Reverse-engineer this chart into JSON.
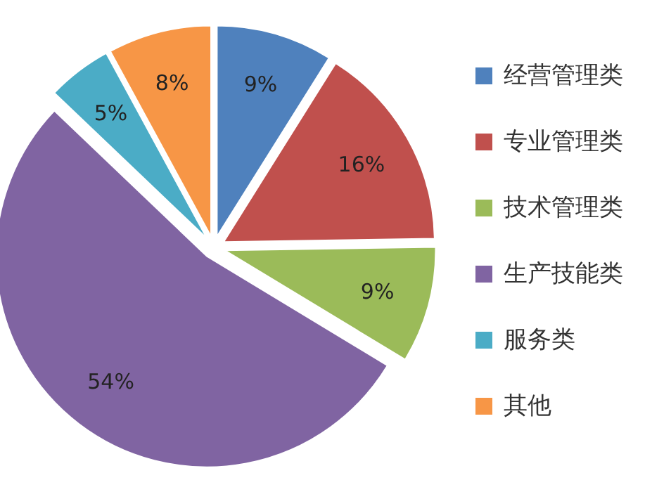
{
  "chart_data": {
    "type": "pie",
    "categories": [
      "经营管理类",
      "专业管理类",
      "技术管理类",
      "生产技能类",
      "服务类",
      "其他"
    ],
    "values": [
      9,
      16,
      9,
      54,
      5,
      8
    ],
    "colors": [
      "#4f81bd",
      "#c0504d",
      "#9bbb59",
      "#8064a2",
      "#4bacc6",
      "#f79646"
    ],
    "value_labels": [
      "9%",
      "16%",
      "9%",
      "54%",
      "5%",
      "8%"
    ],
    "legend": "right"
  }
}
